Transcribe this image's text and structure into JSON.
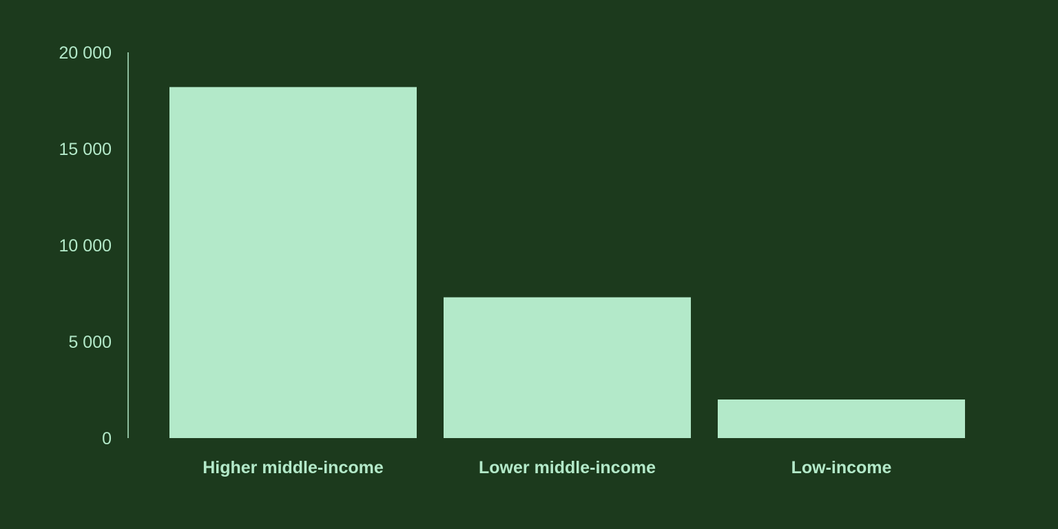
{
  "colors": {
    "background": "#1c3a1d",
    "bar": "#b3e9c9",
    "axis": "#b3e9c9",
    "text": "#b3e9c9"
  },
  "chart_data": {
    "type": "bar",
    "title": "",
    "xlabel": "",
    "ylabel": "",
    "categories": [
      "Higher middle-income",
      "Lower middle-income",
      "Low-income"
    ],
    "values": [
      18200,
      7300,
      2000
    ],
    "ylim": [
      0,
      20000
    ],
    "yticks": [
      0,
      5000,
      10000,
      15000,
      20000
    ],
    "ytick_labels": [
      "0",
      "5 000",
      "10 000",
      "15 000",
      "20 000"
    ],
    "grid": false,
    "legend": "none"
  }
}
